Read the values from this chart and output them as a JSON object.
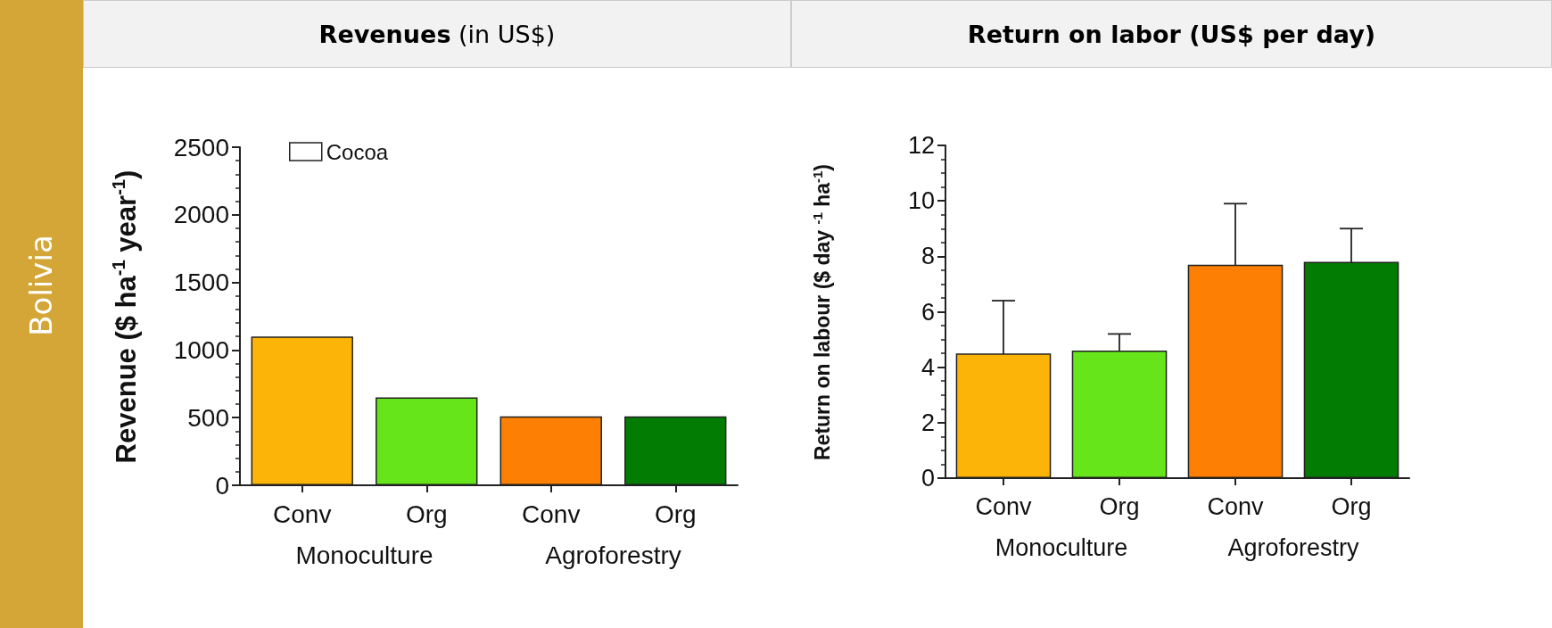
{
  "chart_data": [
    {
      "type": "bar",
      "title": "Revenues (in US$)",
      "ylabel": "Revenue ($ ha$^{-1}$ year$^{-1}$)",
      "categories": [
        "Conv",
        "Org",
        "Conv",
        "Org"
      ],
      "series": [
        {
          "name": "Cocoa",
          "color": "#ffffff",
          "colors": [
            "#fbb407",
            "#66e61a",
            "#fd7f03",
            "#027c03"
          ],
          "values": [
            1100,
            650,
            510,
            510
          ]
        }
      ],
      "ylim": [
        0,
        2500
      ],
      "yticks": [
        0,
        500,
        1000,
        1500,
        2000,
        2500
      ],
      "grid": false,
      "legend": "top left",
      "annotations": [
        "Monoculture",
        "Agroforestry",
        "Bolivia"
      ]
    },
    {
      "type": "bar",
      "title": "Return on labor (US$ per day)",
      "ylabel": "Return on labour ($  day $^{-1}$ ha$^{-1}$)",
      "categories": [
        "Conv",
        "Org",
        "Conv",
        "Org"
      ],
      "series": [
        {
          "colors": [
            "#fbb407",
            "#66e61a",
            "#fd7f03",
            "#027c03"
          ],
          "values": [
            4.5,
            4.6,
            7.7,
            7.8
          ],
          "errors": [
            1.9,
            0.6,
            2.2,
            1.2
          ]
        }
      ],
      "ylim": [
        0,
        12
      ],
      "yticks": [
        0,
        2,
        4,
        6,
        8,
        10,
        12
      ],
      "grid": false,
      "legend": false,
      "annotations": [
        "Monoculture",
        "Agroforestry"
      ]
    }
  ]
}
